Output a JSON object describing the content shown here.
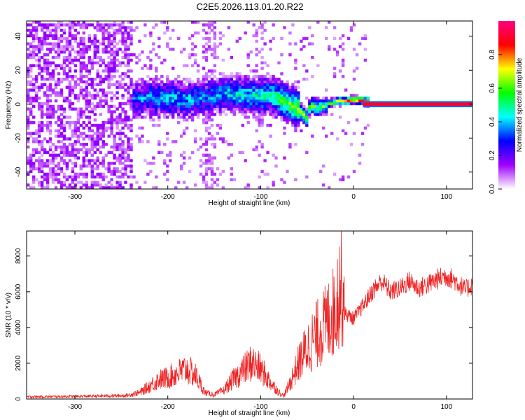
{
  "figure": {
    "title": "C2E5.2026.113.01.20.R22"
  },
  "chart_data": [
    {
      "type": "heatmap",
      "xlabel": "Height of straight line (km)",
      "ylabel": "Frequency (Hz)",
      "xlim": [
        -352,
        128
      ],
      "ylim": [
        -50,
        49
      ],
      "xticks": [
        -300,
        -200,
        -100,
        0,
        100
      ],
      "yticks": [
        -40,
        -20,
        0,
        20,
        40
      ],
      "grid": false,
      "colorbar": {
        "label": "Normalized spectral amplitude",
        "range": [
          0,
          1
        ],
        "ticks": [
          0.0,
          0.2,
          0.4,
          0.6,
          0.8
        ],
        "colors": [
          "#ffffff",
          "#a000ff",
          "#0000ff",
          "#00ffff",
          "#00ff00",
          "#ffff00",
          "#ff0000",
          "#ff0080"
        ]
      },
      "centerline": [
        {
          "x": -240,
          "f": 2,
          "amp": 0.32
        },
        {
          "x": -220,
          "f": 3,
          "amp": 0.38
        },
        {
          "x": -200,
          "f": 3,
          "amp": 0.42
        },
        {
          "x": -180,
          "f": 2,
          "amp": 0.4
        },
        {
          "x": -160,
          "f": 3,
          "amp": 0.36
        },
        {
          "x": -140,
          "f": 6,
          "amp": 0.42
        },
        {
          "x": -120,
          "f": 4,
          "amp": 0.45
        },
        {
          "x": -100,
          "f": 4,
          "amp": 0.48
        },
        {
          "x": -90,
          "f": 5,
          "amp": 0.52
        },
        {
          "x": -80,
          "f": 2,
          "amp": 0.58
        },
        {
          "x": -70,
          "f": -1,
          "amp": 0.62
        },
        {
          "x": -60,
          "f": -4,
          "amp": 0.66
        },
        {
          "x": -52,
          "f": -9,
          "amp": 0.7
        },
        {
          "x": -48,
          "f": -1,
          "amp": 0.62
        },
        {
          "x": -40,
          "f": -3,
          "amp": 0.58
        },
        {
          "x": -30,
          "f": -1,
          "amp": 0.62
        },
        {
          "x": -20,
          "f": 1,
          "amp": 0.72
        },
        {
          "x": -10,
          "f": 1,
          "amp": 0.82
        },
        {
          "x": 0,
          "f": 2,
          "amp": 0.92
        },
        {
          "x": 10,
          "f": 1,
          "amp": 0.95
        },
        {
          "x": 128,
          "f": 0,
          "amp": 0.95
        }
      ]
    },
    {
      "type": "line",
      "xlabel": "Height of straight line (km)",
      "ylabel": "SNR (10 * v/v)",
      "xlim": [
        -352,
        128
      ],
      "ylim": [
        0,
        9400
      ],
      "xticks": [
        -300,
        -200,
        -100,
        0,
        100
      ],
      "yticks": [
        0,
        2000,
        4000,
        6000,
        8000
      ],
      "grid": false,
      "series": [
        {
          "color": "#ee2222",
          "x": [
            -352,
            -330,
            -300,
            -270,
            -245,
            -230,
            -220,
            -210,
            -200,
            -190,
            -180,
            -170,
            -160,
            -150,
            -140,
            -130,
            -120,
            -110,
            -100,
            -90,
            -80,
            -75,
            -70,
            -60,
            -50,
            -40,
            -30,
            -20,
            -15,
            -10,
            0,
            10,
            20,
            30,
            40,
            50,
            60,
            70,
            80,
            90,
            100,
            110,
            120,
            128
          ],
          "y": [
            100,
            110,
            120,
            140,
            160,
            300,
            600,
            900,
            1000,
            1200,
            1400,
            1100,
            300,
            200,
            400,
            900,
            1300,
            1700,
            1400,
            800,
            300,
            150,
            600,
            1600,
            2400,
            3000,
            3500,
            4200,
            5300,
            4800,
            4500,
            5200,
            6000,
            6600,
            6000,
            6200,
            6600,
            6200,
            6400,
            6700,
            6900,
            6600,
            6100,
            6400
          ]
        }
      ]
    }
  ]
}
